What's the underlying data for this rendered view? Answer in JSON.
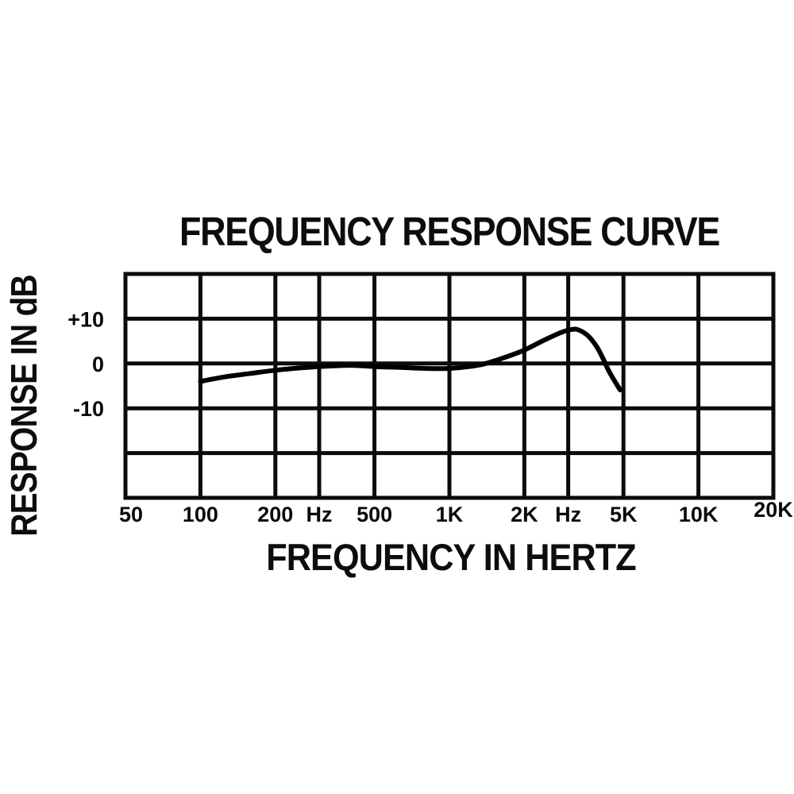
{
  "chart_data": {
    "type": "line",
    "title": "FREQUENCY RESPONSE CURVE",
    "xlabel": "FREQUENCY IN HERTZ",
    "ylabel": "RESPONSE IN dB",
    "x_scale": "log",
    "xlim_hz": [
      50,
      20000
    ],
    "ylim_db": [
      -30,
      20
    ],
    "grid": true,
    "background_color": "#ffffff",
    "line_color": "#000000",
    "grid_color": "#0b0b0b",
    "x_gridlines_hz": [
      50,
      100,
      200,
      300,
      500,
      1000,
      2000,
      3000,
      5000,
      10000,
      20000
    ],
    "x_tick_labels": [
      "50",
      "100",
      "200",
      "Hz",
      "500",
      "1K",
      "2K",
      "Hz",
      "5K",
      "10K",
      "20K"
    ],
    "y_gridlines_db": [
      20,
      10,
      0,
      -10,
      -20,
      -30
    ],
    "y_tick_labels": [
      {
        "db": 10,
        "label": "+10"
      },
      {
        "db": 0,
        "label": "0"
      },
      {
        "db": -10,
        "label": "-10"
      }
    ],
    "series": [
      {
        "name": "frequency-response",
        "points_hz_db": [
          [
            100,
            -4.0
          ],
          [
            125,
            -3.0
          ],
          [
            160,
            -2.2
          ],
          [
            200,
            -1.5
          ],
          [
            250,
            -1.0
          ],
          [
            300,
            -0.7
          ],
          [
            400,
            -0.4
          ],
          [
            500,
            -0.7
          ],
          [
            650,
            -0.9
          ],
          [
            800,
            -1.1
          ],
          [
            1000,
            -1.1
          ],
          [
            1200,
            -0.7
          ],
          [
            1400,
            0.0
          ],
          [
            1700,
            1.5
          ],
          [
            2000,
            3.0
          ],
          [
            2400,
            5.2
          ],
          [
            2800,
            6.9
          ],
          [
            3100,
            7.6
          ],
          [
            3300,
            7.5
          ],
          [
            3600,
            6.2
          ],
          [
            3900,
            3.8
          ],
          [
            4150,
            1.0
          ],
          [
            4400,
            -2.0
          ],
          [
            4850,
            -5.9
          ]
        ]
      }
    ]
  }
}
